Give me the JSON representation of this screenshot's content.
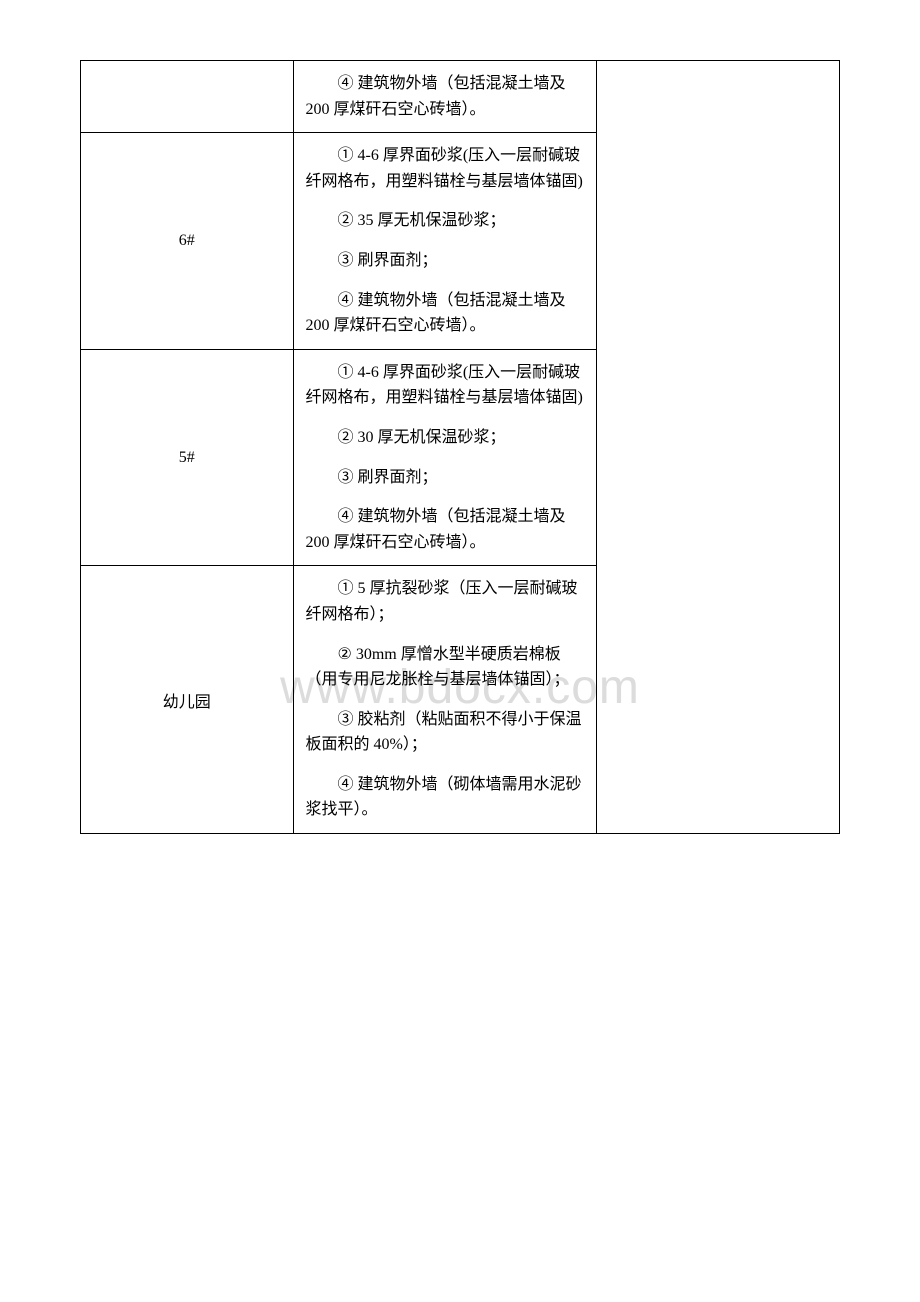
{
  "watermark": "www.bdocx.com",
  "rows": [
    {
      "label": "",
      "items": [
        "④ 建筑物外墙（包括混凝土墙及 200 厚煤矸石空心砖墙）。"
      ]
    },
    {
      "label": "6#",
      "items": [
        "① 4-6 厚界面砂浆(压入一层耐碱玻纤网格布，用塑料锚栓与基层墙体锚固)",
        "② 35 厚无机保温砂浆；",
        "③ 刷界面剂；",
        "④ 建筑物外墙（包括混凝土墙及 200 厚煤矸石空心砖墙）。"
      ]
    },
    {
      "label": "5#",
      "items": [
        "① 4-6 厚界面砂浆(压入一层耐碱玻纤网格布，用塑料锚栓与基层墙体锚固)",
        "② 30 厚无机保温砂浆；",
        "③ 刷界面剂；",
        "④ 建筑物外墙（包括混凝土墙及 200 厚煤矸石空心砖墙）。"
      ]
    },
    {
      "label": "幼儿园",
      "items": [
        "① 5 厚抗裂砂浆（压入一层耐碱玻纤网格布）；",
        "② 30mm 厚憎水型半硬质岩棉板（用专用尼龙胀栓与基层墙体锚固）；",
        "③ 胶粘剂（粘贴面积不得小于保温板面积的 40%）；",
        "④ 建筑物外墙（砌体墙需用水泥砂浆找平）。"
      ]
    }
  ]
}
